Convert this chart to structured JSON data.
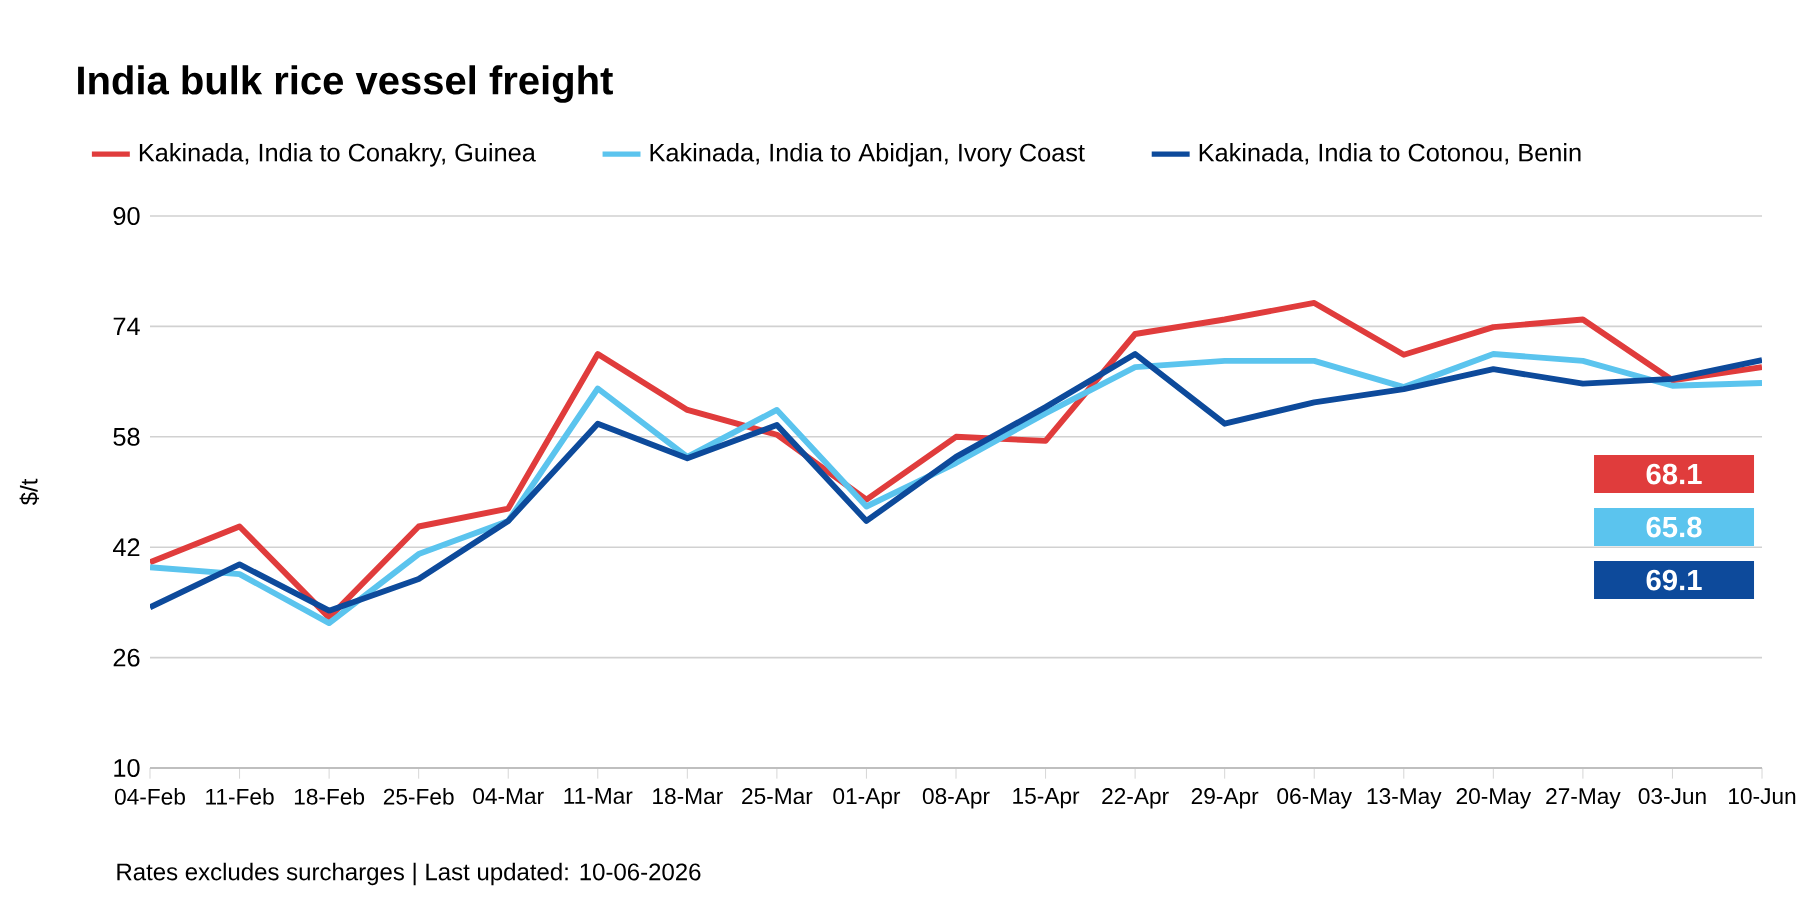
{
  "chart_data": {
    "type": "line",
    "title": "India bulk rice vessel freight",
    "ylabel": "$/t",
    "categories": [
      "04-Feb",
      "11-Feb",
      "18-Feb",
      "25-Feb",
      "04-Mar",
      "11-Mar",
      "18-Mar",
      "25-Mar",
      "01-Apr",
      "08-Apr",
      "15-Apr",
      "22-Apr",
      "29-Apr",
      "06-May",
      "13-May",
      "20-May",
      "27-May",
      "03-Jun",
      "10-Jun"
    ],
    "series": [
      {
        "name": "Kakinada, India to Conakry, Guinea",
        "color": "#e03c3c",
        "values": [
          39.8,
          45.0,
          31.8,
          45.0,
          47.6,
          70.0,
          61.9,
          58.3,
          48.9,
          58.0,
          57.4,
          72.9,
          75.0,
          77.4,
          69.9,
          73.9,
          75.0,
          66.2,
          68.1
        ]
      },
      {
        "name": "Kakinada, India to Abidjan, Ivory Coast",
        "color": "#5bc4ee",
        "values": [
          39.1,
          38.1,
          31.0,
          41.0,
          45.8,
          65.0,
          55.1,
          61.9,
          47.9,
          54.2,
          61.4,
          68.1,
          69.0,
          69.0,
          65.2,
          70.0,
          69.0,
          65.4,
          65.8
        ]
      },
      {
        "name": "Kakinada, India to Cotonou, Benin",
        "color": "#0d4a9b",
        "values": [
          33.3,
          39.5,
          32.8,
          37.4,
          45.8,
          59.9,
          54.9,
          59.7,
          45.8,
          55.1,
          62.3,
          70.0,
          59.9,
          63.0,
          64.9,
          67.8,
          65.7,
          66.4,
          69.1
        ]
      }
    ],
    "ylim": [
      10,
      90
    ],
    "yticks": [
      10,
      26,
      42,
      58,
      74,
      90
    ],
    "grid": "y",
    "legend": "top",
    "line_style": "solid",
    "marker": "none",
    "annotations": [
      "68.1",
      "65.8",
      "69.1",
      "Rates excludes surcharges | Last updated: 10-06-2026"
    ]
  }
}
